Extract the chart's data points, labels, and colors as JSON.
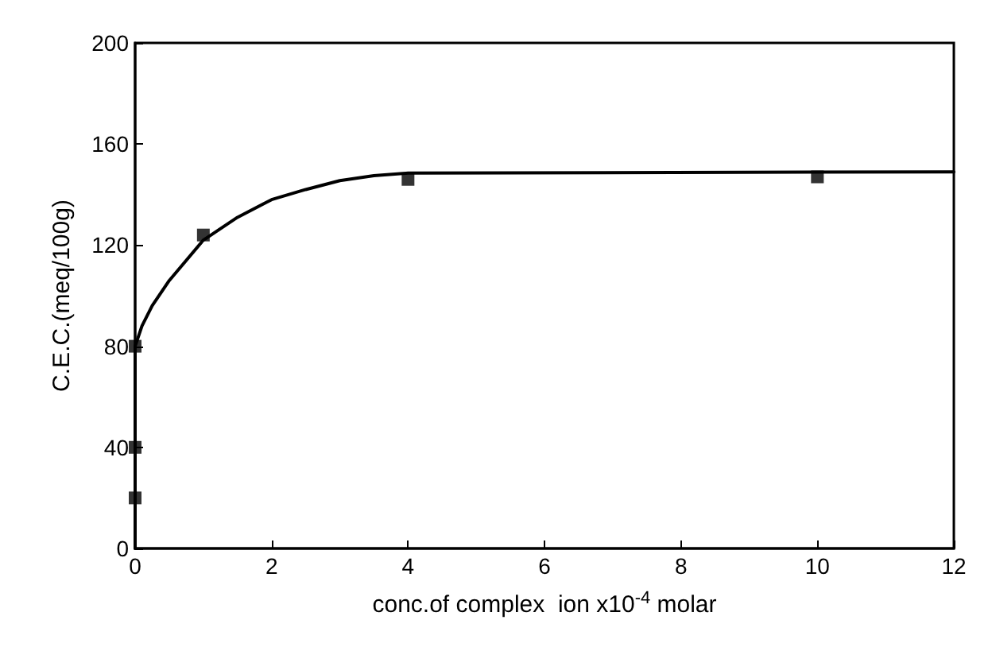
{
  "chart_data": {
    "type": "scatter",
    "xlabel": "conc.of complex  ion x10$^{-4}$ molar",
    "ylabel": "C.E.C.(meq/100g)",
    "xlim": [
      0,
      12
    ],
    "xticks": [
      0,
      2,
      4,
      6,
      8,
      10,
      12
    ],
    "ylim": [
      0,
      200
    ],
    "yticks": [
      0,
      40,
      80,
      120,
      160,
      200
    ],
    "grid": false,
    "series": [
      {
        "marker": "square",
        "color": "#000000",
        "x": [
          0,
          0,
          0,
          1,
          4,
          10
        ],
        "values": [
          20,
          40,
          80,
          124,
          146,
          147
        ]
      },
      {
        "type": "line",
        "marker": "none",
        "line_style": "solid",
        "color": "#000000",
        "x": [
          0,
          0,
          0.1,
          0.25,
          0.5,
          1,
          1.5,
          2,
          2.5,
          3,
          3.5,
          4,
          12
        ],
        "values": [
          0,
          80,
          88,
          96,
          106,
          122,
          131,
          138,
          142,
          145.5,
          147.5,
          148.5,
          149
        ]
      }
    ]
  }
}
